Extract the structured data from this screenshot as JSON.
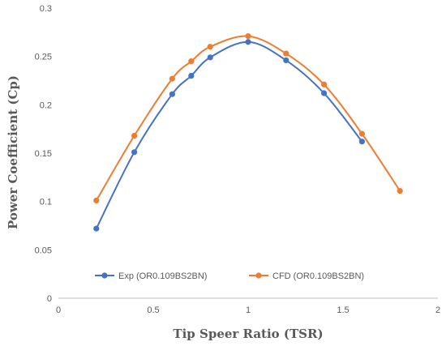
{
  "chart_data": {
    "type": "line",
    "xlabel": "Tip Speer Ratio (TSR)",
    "ylabel": "Power Coefficient (Cp)",
    "xlim": [
      0,
      2
    ],
    "ylim": [
      0,
      0.3
    ],
    "xticks": [
      0,
      0.5,
      1,
      1.5,
      2
    ],
    "xtick_labels": [
      "0",
      "0.5",
      "1",
      "1.5",
      "2"
    ],
    "yticks": [
      0,
      0.05,
      0.1,
      0.15,
      0.2,
      0.25,
      0.3
    ],
    "ytick_labels": [
      "0",
      "0.05",
      "0.1",
      "0.15",
      "0.2",
      "0.25",
      "0.3"
    ],
    "grid": false,
    "legend_position": "bottom-left",
    "series": [
      {
        "name": "Exp (OR0.109BS2BN)",
        "color": "#4472c4",
        "x": [
          0.2,
          0.4,
          0.6,
          0.7,
          0.8,
          1.0,
          1.2,
          1.4,
          1.6
        ],
        "y": [
          0.072,
          0.151,
          0.211,
          0.23,
          0.249,
          0.265,
          0.246,
          0.212,
          0.162
        ]
      },
      {
        "name": "CFD (OR0.109BS2BN)",
        "color": "#ed7d31",
        "x": [
          0.2,
          0.4,
          0.6,
          0.7,
          0.8,
          1.0,
          1.2,
          1.4,
          1.6,
          1.8
        ],
        "y": [
          0.101,
          0.168,
          0.227,
          0.245,
          0.26,
          0.271,
          0.253,
          0.221,
          0.17,
          0.111
        ]
      }
    ]
  }
}
